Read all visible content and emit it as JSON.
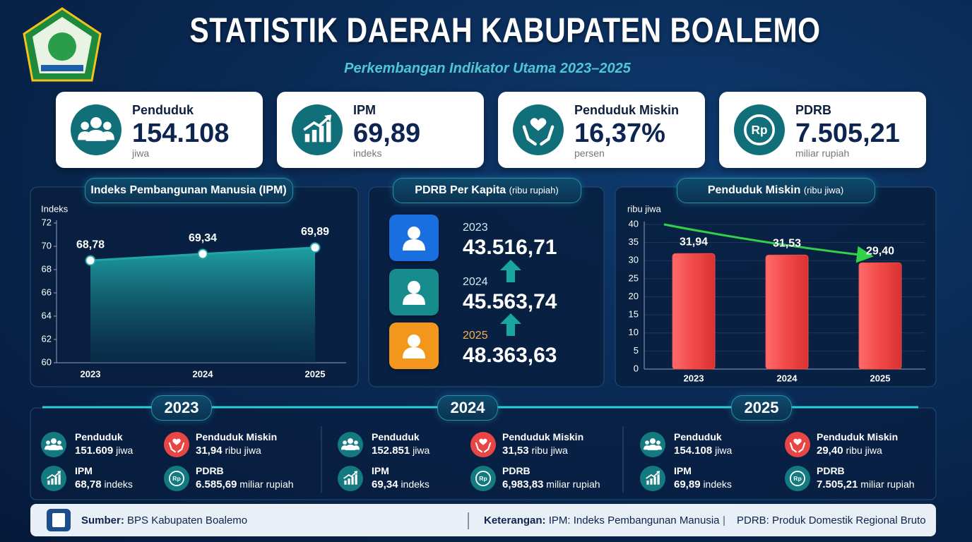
{
  "header": {
    "title": "STATISTIK DAERAH KABUPATEN BOALEMO",
    "subtitle": "Perkembangan Indikator Utama 2023–2025"
  },
  "currency_symbol": "Rp",
  "kpis": [
    {
      "label": "Penduduk",
      "value": "154.108",
      "unit": "jiwa"
    },
    {
      "label": "IPM",
      "value": "69,89",
      "unit": "indeks"
    },
    {
      "label": "Penduduk Miskin",
      "value": "16,37%",
      "unit": "persen"
    },
    {
      "label": "PDRB",
      "value": "7.505,21",
      "unit": "miliar rupiah"
    }
  ],
  "chart_data": [
    {
      "type": "line",
      "title": "Indeks Pembangunan Manusia (IPM)",
      "y_label": "Indeks",
      "categories": [
        "2023",
        "2024",
        "2025"
      ],
      "values": [
        68.78,
        69.34,
        69.89
      ],
      "value_labels": [
        "68,78",
        "69,34",
        "69,89"
      ],
      "color": "#1fa7a8",
      "ylim": [
        60,
        72
      ],
      "yticks": [
        60,
        62,
        64,
        66,
        68,
        70,
        72
      ],
      "grid": false
    },
    {
      "type": "bar",
      "title": "Penduduk Miskin",
      "title_note": "(ribu jiwa)",
      "y_label": "ribu jiwa",
      "categories": [
        "2023",
        "2024",
        "2025"
      ],
      "values": [
        31.94,
        31.53,
        29.4
      ],
      "value_labels": [
        "31,94",
        "31,53",
        "29,40"
      ],
      "color": "#f04a4a",
      "ylim": [
        0,
        40
      ],
      "yticks": [
        0,
        5,
        10,
        15,
        20,
        25,
        30,
        35,
        40
      ],
      "grid": true
    }
  ],
  "pdrb_per_kapita": {
    "title": "PDRB Per Kapita",
    "title_note": "(ribu rupiah)",
    "items": [
      {
        "year": "2023",
        "value": "43.516,71"
      },
      {
        "year": "2024",
        "value": "45.563,74"
      },
      {
        "year": "2025",
        "value": "48.363,63"
      }
    ]
  },
  "timeline": [
    {
      "year": "2023",
      "items": [
        {
          "label": "Penduduk",
          "value": "151.609",
          "unit": "jiwa"
        },
        {
          "label": "Penduduk Miskin",
          "value": "31,94",
          "unit": "ribu jiwa"
        },
        {
          "label": "IPM",
          "value": "68,78",
          "unit": "indeks"
        },
        {
          "label": "PDRB",
          "value": "6.585,69",
          "unit": "miliar rupiah"
        }
      ]
    },
    {
      "year": "2024",
      "items": [
        {
          "label": "Penduduk",
          "value": "152.851",
          "unit": "jiwa"
        },
        {
          "label": "Penduduk Miskin",
          "value": "31,53",
          "unit": "ribu jiwa"
        },
        {
          "label": "IPM",
          "value": "69,34",
          "unit": "indeks"
        },
        {
          "label": "PDRB",
          "value": "6,983,83",
          "unit": "miliar rupiah"
        }
      ]
    },
    {
      "year": "2025",
      "items": [
        {
          "label": "Penduduk",
          "value": "154.108",
          "unit": "jiwa"
        },
        {
          "label": "Penduduk Miskin",
          "value": "29,40",
          "unit": "ribu jiwa"
        },
        {
          "label": "IPM",
          "value": "69,89",
          "unit": "indeks"
        },
        {
          "label": "PDRB",
          "value": "7.505,21",
          "unit": "miliar rupiah"
        }
      ]
    }
  ],
  "footer": {
    "source_label": "Sumber:",
    "source": "BPS Kabupaten Boalemo",
    "note_label": "Keterangan:",
    "notes": [
      "IPM: Indeks Pembangunan Manusia",
      "PDRB: Produk Domestik Regional Bruto"
    ]
  }
}
